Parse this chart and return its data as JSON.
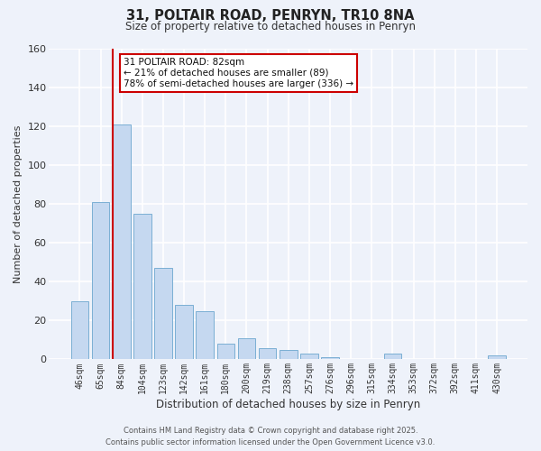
{
  "title": "31, POLTAIR ROAD, PENRYN, TR10 8NA",
  "subtitle": "Size of property relative to detached houses in Penryn",
  "xlabel": "Distribution of detached houses by size in Penryn",
  "ylabel": "Number of detached properties",
  "bar_labels": [
    "46sqm",
    "65sqm",
    "84sqm",
    "104sqm",
    "123sqm",
    "142sqm",
    "161sqm",
    "180sqm",
    "200sqm",
    "219sqm",
    "238sqm",
    "257sqm",
    "276sqm",
    "296sqm",
    "315sqm",
    "334sqm",
    "353sqm",
    "372sqm",
    "392sqm",
    "411sqm",
    "430sqm"
  ],
  "bar_values": [
    30,
    81,
    121,
    75,
    47,
    28,
    25,
    8,
    11,
    6,
    5,
    3,
    1,
    0,
    0,
    3,
    0,
    0,
    0,
    0,
    2
  ],
  "bar_color": "#c5d8f0",
  "bar_edge_color": "#7bafd4",
  "background_color": "#eef2fa",
  "grid_color": "#ffffff",
  "ylim": [
    0,
    160
  ],
  "yticks": [
    0,
    20,
    40,
    60,
    80,
    100,
    120,
    140,
    160
  ],
  "vline_color": "#cc0000",
  "annotation_title": "31 POLTAIR ROAD: 82sqm",
  "annotation_line1": "← 21% of detached houses are smaller (89)",
  "annotation_line2": "78% of semi-detached houses are larger (336) →",
  "annotation_box_color": "#ffffff",
  "annotation_box_edge": "#cc0000",
  "footer_line1": "Contains HM Land Registry data © Crown copyright and database right 2025.",
  "footer_line2": "Contains public sector information licensed under the Open Government Licence v3.0."
}
